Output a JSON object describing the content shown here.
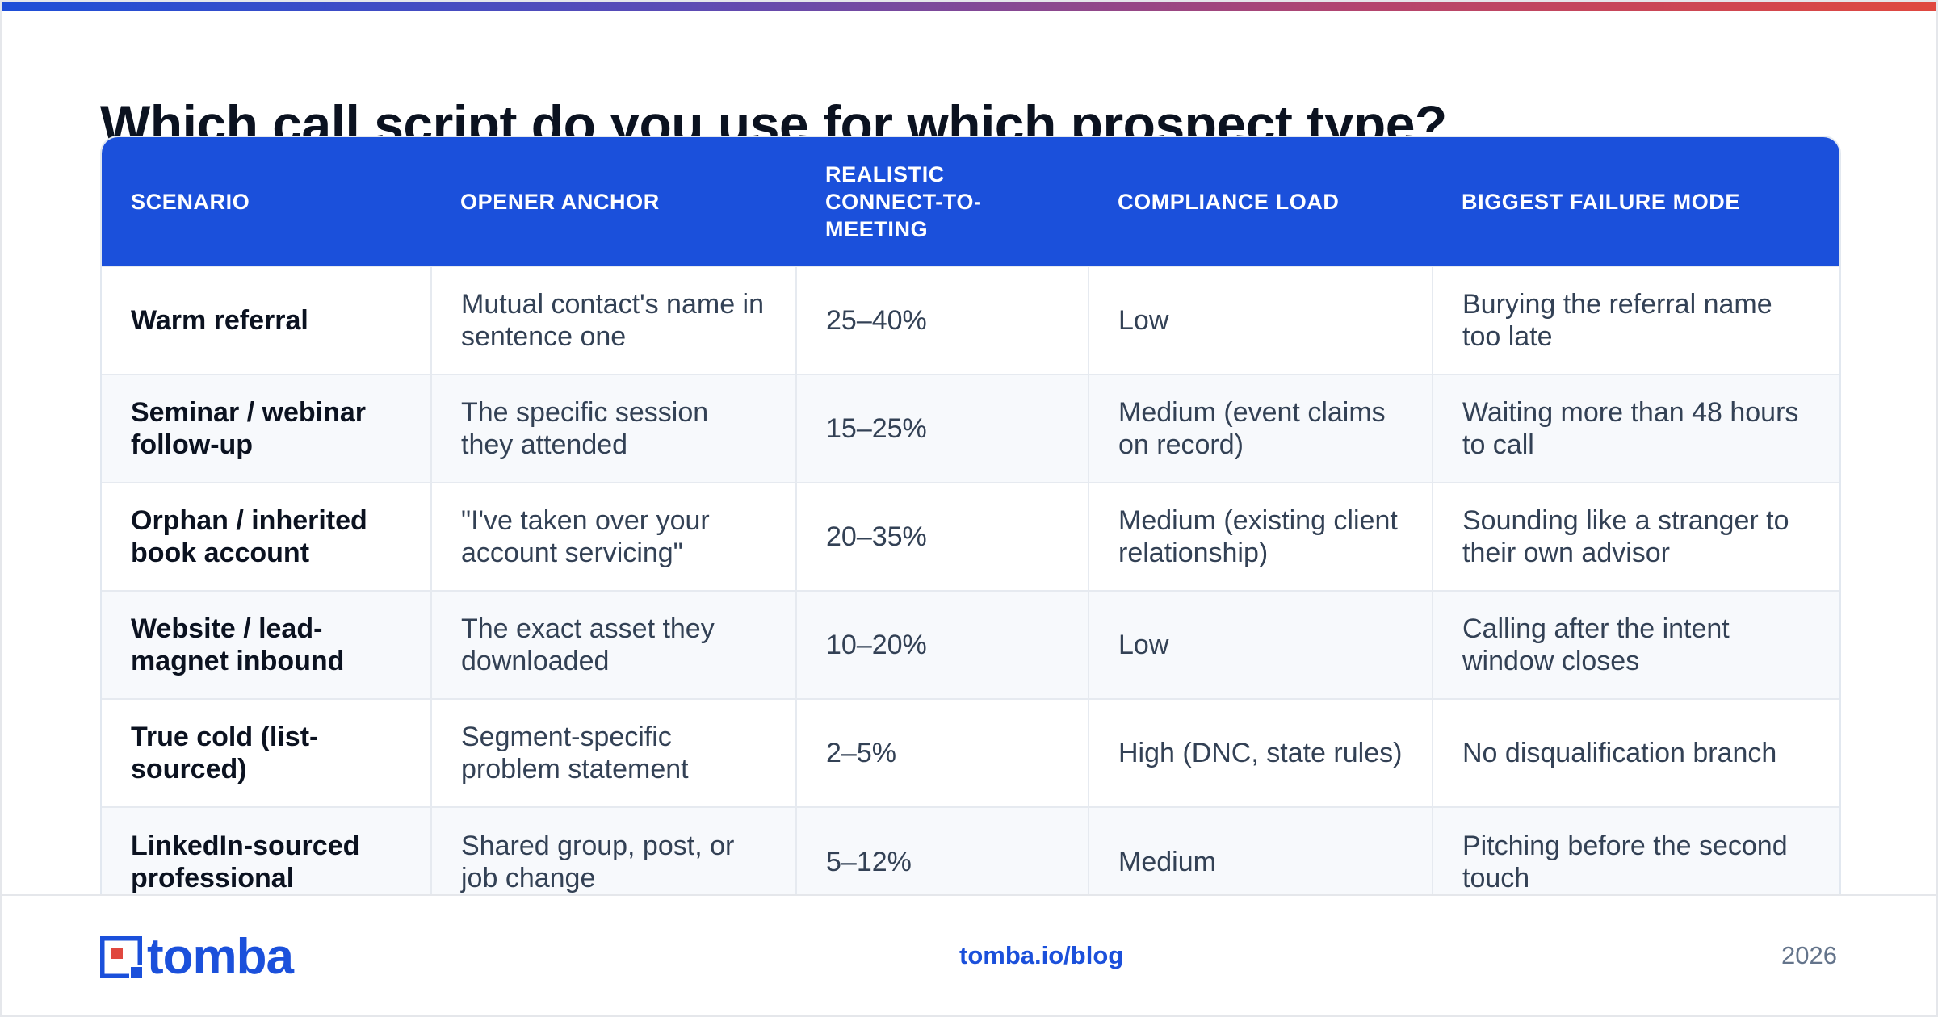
{
  "title": "Which call script do you use for which prospect type?",
  "colors": {
    "accent": "#1b50db",
    "gradient_start": "#1d4ed8",
    "gradient_end": "#e0483f",
    "row_alt": "#f7f9fc"
  },
  "table": {
    "headers": [
      "SCENARIO",
      "OPENER ANCHOR",
      "REALISTIC CONNECT-TO-MEETING",
      "COMPLIANCE LOAD",
      "BIGGEST FAILURE MODE"
    ],
    "rows": [
      [
        "Warm referral",
        "Mutual contact's name in sentence one",
        "25–40%",
        "Low",
        "Burying the referral name too late"
      ],
      [
        "Seminar / webinar follow-up",
        "The specific session they attended",
        "15–25%",
        "Medium (event claims on record)",
        "Waiting more than 48 hours to call"
      ],
      [
        "Orphan / inherited book account",
        "\"I've taken over your account servicing\"",
        "20–35%",
        "Medium (existing client relationship)",
        "Sounding like a stranger to their own advisor"
      ],
      [
        "Website / lead-magnet inbound",
        "The exact asset they downloaded",
        "10–20%",
        "Low",
        "Calling after the intent window closes"
      ],
      [
        "True cold (list-sourced)",
        "Segment-specific problem statement",
        "2–5%",
        "High (DNC, state rules)",
        "No disqualification branch"
      ],
      [
        "LinkedIn-sourced professional",
        "Shared group, post, or job change",
        "5–12%",
        "Medium",
        "Pitching before the second touch"
      ]
    ]
  },
  "footer": {
    "logo_text": "tomba",
    "link": "tomba.io/blog",
    "year": "2026"
  }
}
